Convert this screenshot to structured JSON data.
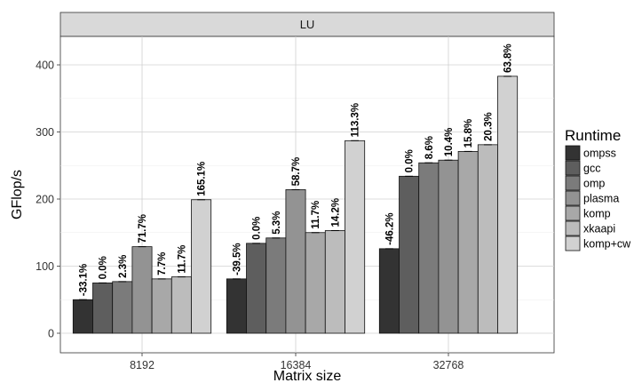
{
  "chart_data": {
    "type": "bar",
    "facet": "LU",
    "xlabel": "Matrix size",
    "ylabel": "GFlop/s",
    "ylim": [
      0,
      440
    ],
    "yticks": [
      0,
      100,
      200,
      300,
      400
    ],
    "categories": [
      "8192",
      "16384",
      "32768"
    ],
    "legend_title": "Runtime",
    "legend_position": "right",
    "grid": true,
    "series": [
      {
        "name": "ompss",
        "color": "#333333",
        "values": [
          50,
          81,
          126
        ],
        "labels": [
          "-33.1%",
          "-39.5%",
          "-46.2%"
        ]
      },
      {
        "name": "gcc",
        "color": "#5e5e5e",
        "values": [
          75,
          134,
          234
        ],
        "labels": [
          "0.0%",
          "0.0%",
          "0.0%"
        ]
      },
      {
        "name": "omp",
        "color": "#7b7b7b",
        "values": [
          77,
          142,
          254
        ],
        "labels": [
          "2.3%",
          "5.3%",
          "8.6%"
        ]
      },
      {
        "name": "plasma",
        "color": "#939393",
        "values": [
          129,
          214,
          258
        ],
        "labels": [
          "71.7%",
          "58.7%",
          "10.4%"
        ]
      },
      {
        "name": "komp",
        "color": "#a8a8a8",
        "values": [
          81,
          150,
          271
        ],
        "labels": [
          "7.7%",
          "11.7%",
          "15.8%"
        ]
      },
      {
        "name": "xkaapi",
        "color": "#bcbcbc",
        "values": [
          84,
          153,
          281
        ],
        "labels": [
          "11.7%",
          "14.2%",
          "20.3%"
        ]
      },
      {
        "name": "komp+cw",
        "color": "#d1d1d1",
        "values": [
          199,
          287,
          383
        ],
        "labels": [
          "165.1%",
          "113.3%",
          "63.8%"
        ]
      }
    ]
  }
}
